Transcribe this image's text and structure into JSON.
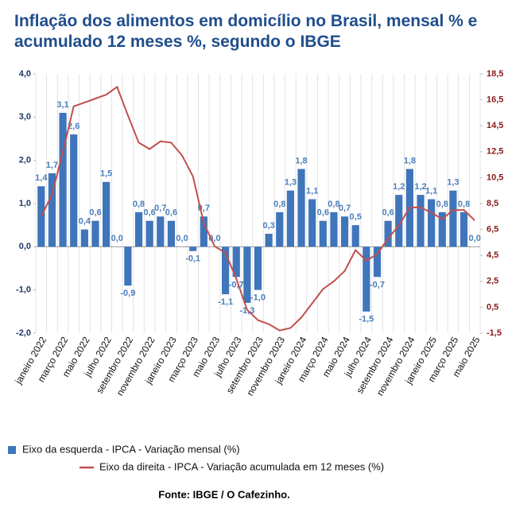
{
  "chart_data": {
    "type": "bar",
    "title": "Inflação dos alimentos em domicílio no Brasil, mensal % e acumulado 12 meses %, segundo o IBGE",
    "source": "Fonte: IBGE / O Cafezinho.",
    "categories": [
      "janeiro 2022",
      null,
      "março 2022",
      null,
      "maio 2022",
      null,
      "julho 2022",
      null,
      "setembro 2022",
      null,
      "novembro 2022",
      null,
      "janeiro 2023",
      null,
      "março 2023",
      null,
      "maio 2023",
      null,
      "julho 2023",
      null,
      "setembro 2023",
      null,
      "novembro 2023",
      null,
      "janeiro 2024",
      null,
      "março 2024",
      null,
      "maio 2024",
      null,
      "julho 2024",
      null,
      "setembro 2024",
      null,
      "novembro 2024",
      null,
      "janeiro 2025",
      null,
      "março 2025",
      null,
      "maio 2025"
    ],
    "series": [
      {
        "name": "Eixo da esquerda - IPCA - Variação mensal (%)",
        "type": "bar",
        "color": "#3f75ba",
        "values": [
          1.4,
          1.7,
          3.1,
          2.6,
          0.4,
          0.6,
          1.5,
          0.0,
          -0.9,
          0.8,
          0.6,
          0.7,
          0.6,
          0.0,
          -0.1,
          0.7,
          0.0,
          -1.1,
          -0.7,
          -1.3,
          -1.0,
          0.3,
          0.8,
          1.3,
          1.8,
          1.1,
          0.6,
          0.8,
          0.7,
          0.5,
          -1.5,
          -0.7,
          0.6,
          1.2,
          1.8,
          1.2,
          1.1,
          0.8,
          1.3,
          0.8,
          0.0
        ],
        "value_labels": [
          "1,4",
          "1,7",
          "3,1",
          "2,6",
          "0,4",
          "0,6",
          "1,5",
          "0,0",
          "-0,9",
          "0,8",
          "0,6",
          "0,7",
          "0,6",
          "0,0",
          "-0,1",
          "0,7",
          "0,0",
          "-1,1",
          "-0,7",
          "-1,3",
          "-1,0",
          "0,3",
          "0,8",
          "1,3",
          "1,8",
          "1,1",
          "0,6",
          "0,8",
          "0,7",
          "0,5",
          "-1,5",
          "-0,7",
          "0,6",
          "1,2",
          "1,8",
          "1,2",
          "1,1",
          "0,8",
          "1,3",
          "0,8",
          "0,0"
        ]
      },
      {
        "name": "Eixo da direita - IPCA - Variação acumulada em 12 meses (%)",
        "type": "line",
        "axis": "y2",
        "color": "#c0504d",
        "values": [
          7.5,
          9.2,
          12.5,
          16.0,
          16.3,
          16.6,
          16.9,
          17.5,
          15.3,
          13.2,
          12.7,
          13.3,
          13.2,
          12.2,
          10.6,
          7.0,
          5.2,
          4.7,
          2.7,
          0.3,
          -0.5,
          -0.8,
          -1.3,
          -1.1,
          -0.3,
          0.8,
          1.9,
          2.5,
          3.3,
          4.9,
          4.1,
          4.6,
          5.8,
          6.8,
          8.2,
          8.2,
          7.8,
          7.3,
          8.0,
          8.0,
          7.2
        ]
      }
    ],
    "ylim": [
      -2,
      4
    ],
    "yticks": [
      {
        "value": -2,
        "label": "-2,0"
      },
      {
        "value": -1,
        "label": "-1,0"
      },
      {
        "value": 0,
        "label": "0,0"
      },
      {
        "value": 1,
        "label": "1,0"
      },
      {
        "value": 2,
        "label": "2,0"
      },
      {
        "value": 3,
        "label": "3,0"
      },
      {
        "value": 4,
        "label": "4,0"
      }
    ],
    "y2lim": [
      -1.5,
      18.5
    ],
    "y2ticks": [
      {
        "value": -1.5,
        "label": "-1,5"
      },
      {
        "value": 0.5,
        "label": "0,5"
      },
      {
        "value": 2.5,
        "label": "2,5"
      },
      {
        "value": 4.5,
        "label": "4,5"
      },
      {
        "value": 6.5,
        "label": "6,5"
      },
      {
        "value": 8.5,
        "label": "8,5"
      },
      {
        "value": 10.5,
        "label": "10,5"
      },
      {
        "value": 12.5,
        "label": "12,5"
      },
      {
        "value": 14.5,
        "label": "14,5"
      },
      {
        "value": 16.5,
        "label": "16,5"
      },
      {
        "value": 18.5,
        "label": "18,5"
      }
    ]
  }
}
